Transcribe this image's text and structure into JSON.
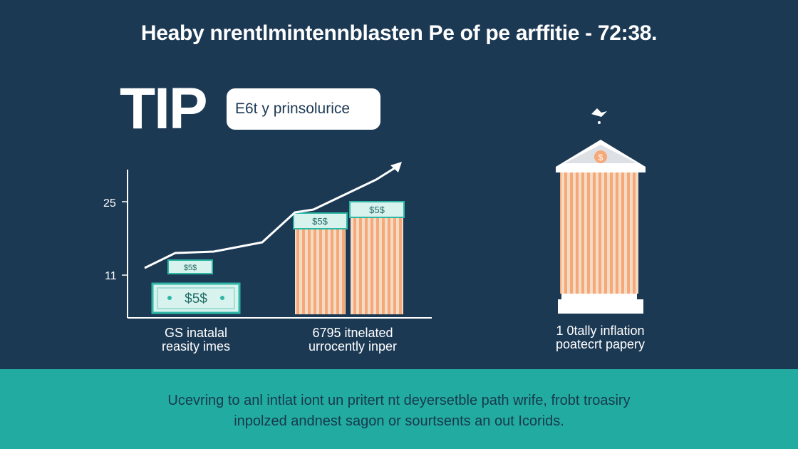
{
  "headline": "Heaby nrentlmintennblasten Pe of pe arffitie - 72:38.",
  "tip": {
    "label": "TIP",
    "pill_text": "E6t y prinsolurice"
  },
  "chart_data": {
    "type": "line",
    "y_ticks": [
      "25",
      "11"
    ],
    "bill_labels": [
      "$5$",
      "$5$",
      "$5$",
      "$5$"
    ],
    "bar_fill_colors": [
      "#f7a879",
      "#f3dcc6"
    ],
    "line_color": "#ffffff"
  },
  "captions": {
    "left": [
      "GS inatalal",
      "reasity imes"
    ],
    "middle": [
      "6795 itnelated",
      "urrocently inper"
    ],
    "right": [
      "1 0tally inflation",
      "poatecrt papery"
    ]
  },
  "bank": {
    "coin_symbol": "$"
  },
  "footer": {
    "line1": "Ucevring to anl intlat iont un pritert nt deyersetble path wrife, frobt troasiry",
    "line2": "inpolzed andnest sagon or sourtsents an out Icorids."
  },
  "colors": {
    "background": "#1c3954",
    "footer": "#22aba1",
    "bill": "#d8f2ee",
    "bar_stripe": "#f7a879"
  }
}
